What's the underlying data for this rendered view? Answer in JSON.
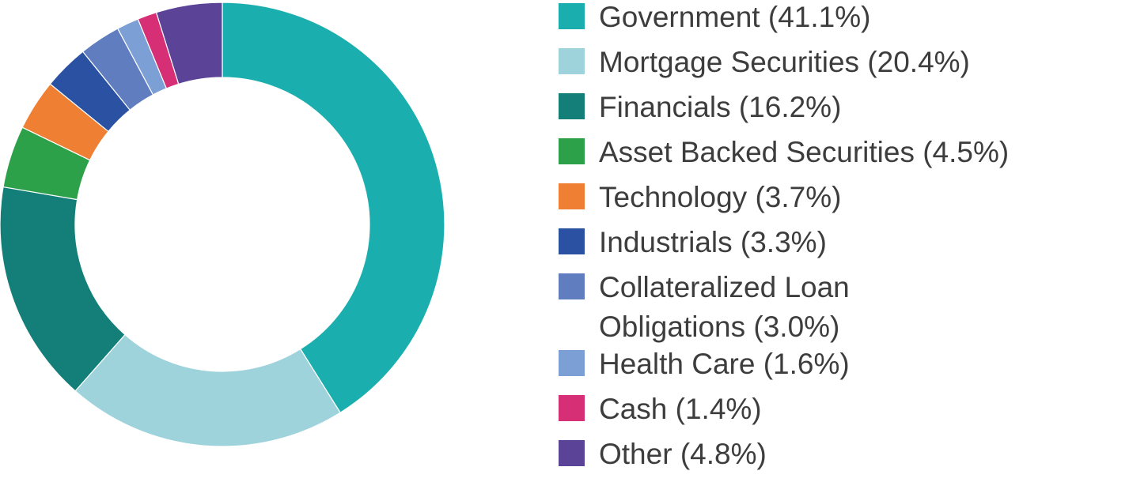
{
  "chart_data": {
    "type": "pie",
    "donut": true,
    "title": "",
    "legend_position": "right",
    "slices": [
      {
        "label": "Government (41.1%)",
        "name": "Government",
        "value": 41.1,
        "color": "#1aafae"
      },
      {
        "label": "Mortgage Securities (20.4%)",
        "name": "Mortgage Securities",
        "value": 20.4,
        "color": "#9ed3dc"
      },
      {
        "label": "Financials (16.2%)",
        "name": "Financials",
        "value": 16.2,
        "color": "#137f78"
      },
      {
        "label": "Asset Backed Securities (4.5%)",
        "name": "Asset Backed Securities",
        "value": 4.5,
        "color": "#2da04a"
      },
      {
        "label": "Technology (3.7%)",
        "name": "Technology",
        "value": 3.7,
        "color": "#ef7f33"
      },
      {
        "label": "Industrials (3.3%)",
        "name": "Industrials",
        "value": 3.3,
        "color": "#2b52a2"
      },
      {
        "label_lines": [
          "Collateralized Loan",
          "Obligations (3.0%)"
        ],
        "name": "Collateralized Loan Obligations",
        "value": 3.0,
        "color": "#5f7dbf"
      },
      {
        "label": "Health Care (1.6%)",
        "name": "Health Care",
        "value": 1.6,
        "color": "#7c9fd6"
      },
      {
        "label": "Cash (1.4%)",
        "name": "Cash",
        "value": 1.4,
        "color": "#d62f75"
      },
      {
        "label": "Other (4.8%)",
        "name": "Other",
        "value": 4.8,
        "color": "#5b4397"
      }
    ]
  }
}
